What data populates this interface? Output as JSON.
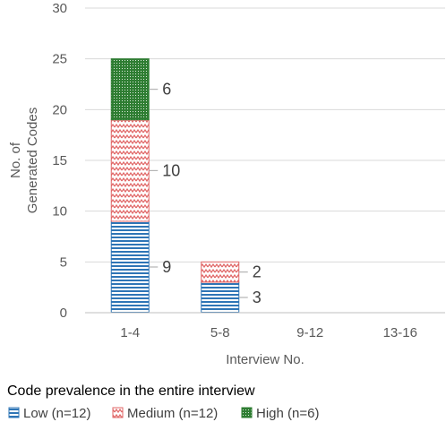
{
  "chart_data": {
    "type": "bar",
    "stacked": true,
    "categories": [
      "1-4",
      "5-8",
      "9-12",
      "13-16"
    ],
    "series": [
      {
        "name": "Low (n=12)",
        "values": [
          9,
          3,
          0,
          0
        ],
        "color": "#2e75b6",
        "pattern": "horizontal-lines"
      },
      {
        "name": "Medium (n=12)",
        "values": [
          10,
          2,
          0,
          0
        ],
        "color": "#e06666",
        "pattern": "zigzag"
      },
      {
        "name": "High (n=6)",
        "values": [
          6,
          0,
          0,
          0
        ],
        "color": "#2e7d32",
        "pattern": "dots"
      }
    ],
    "ylabel_lines": [
      "No. of",
      "Generated Codes"
    ],
    "xlabel": "Interview No.",
    "ylim": [
      0,
      30
    ],
    "yticks": [
      0,
      5,
      10,
      15,
      20,
      25,
      30
    ],
    "grid": "horizontal",
    "legend_title": "Code prevalence in the entire interview",
    "legend_position": "bottom",
    "data_labels": true
  }
}
